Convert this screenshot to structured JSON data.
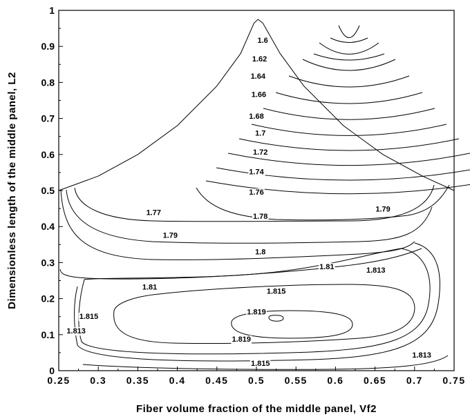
{
  "chart_data": {
    "type": "contour",
    "xlabel": "Fiber volume fraction of the middle panel, Vf2",
    "ylabel": "Dimensionless length of the middle panel, L2",
    "xlim": [
      0.25,
      0.75
    ],
    "ylim": [
      0,
      1
    ],
    "x_ticks": [
      "0.25",
      "0.3",
      "0.35",
      "0.4",
      "0.45",
      "0.5",
      "0.55",
      "0.6",
      "0.65",
      "0.7",
      "0.75"
    ],
    "y_ticks": [
      "0",
      "0.1",
      "0.2",
      "0.3",
      "0.4",
      "0.5",
      "0.6",
      "0.7",
      "0.8",
      "0.9",
      "1"
    ],
    "grid": false,
    "boundary": {
      "left_curve": [
        [
          0.25,
          0.5
        ],
        [
          0.3,
          0.54
        ],
        [
          0.35,
          0.6
        ],
        [
          0.4,
          0.68
        ],
        [
          0.45,
          0.79
        ],
        [
          0.48,
          0.88
        ],
        [
          0.497,
          0.965
        ]
      ],
      "apex": [
        [
          0.497,
          0.965
        ],
        [
          0.502,
          0.975
        ],
        [
          0.508,
          0.965
        ]
      ],
      "right_curve": [
        [
          0.508,
          0.965
        ],
        [
          0.53,
          0.88
        ],
        [
          0.56,
          0.79
        ],
        [
          0.61,
          0.68
        ],
        [
          0.66,
          0.6
        ],
        [
          0.71,
          0.54
        ],
        [
          0.75,
          0.5
        ]
      ]
    },
    "contour_levels": [
      "1.6",
      "1.62",
      "1.64",
      "1.66",
      "1.68",
      "1.7",
      "1.72",
      "1.74",
      "1.76",
      "1.77",
      "1.78",
      "1.79",
      "1.8",
      "1.81",
      "1.813",
      "1.815",
      "1.819"
    ],
    "labels": [
      {
        "text": "1.6",
        "x": 0.508,
        "y": 0.918
      },
      {
        "text": "1.62",
        "x": 0.504,
        "y": 0.866
      },
      {
        "text": "1.64",
        "x": 0.502,
        "y": 0.818
      },
      {
        "text": "1.66",
        "x": 0.503,
        "y": 0.767
      },
      {
        "text": "1.68",
        "x": 0.5,
        "y": 0.707
      },
      {
        "text": "1.7",
        "x": 0.505,
        "y": 0.66
      },
      {
        "text": "1.72",
        "x": 0.505,
        "y": 0.607
      },
      {
        "text": "1.74",
        "x": 0.5,
        "y": 0.553
      },
      {
        "text": "1.76",
        "x": 0.5,
        "y": 0.496
      },
      {
        "text": "1.77",
        "x": 0.37,
        "y": 0.44
      },
      {
        "text": "1.78",
        "x": 0.505,
        "y": 0.429
      },
      {
        "text": "1.79",
        "x": 0.391,
        "y": 0.376
      },
      {
        "text": "1.79",
        "x": 0.66,
        "y": 0.449
      },
      {
        "text": "1.8",
        "x": 0.505,
        "y": 0.33
      },
      {
        "text": "1.81",
        "x": 0.365,
        "y": 0.233
      },
      {
        "text": "1.81",
        "x": 0.589,
        "y": 0.289
      },
      {
        "text": "1.813",
        "x": 0.651,
        "y": 0.28
      },
      {
        "text": "1.813",
        "x": 0.272,
        "y": 0.111
      },
      {
        "text": "1.813",
        "x": 0.709,
        "y": 0.044
      },
      {
        "text": "1.815",
        "x": 0.525,
        "y": 0.221
      },
      {
        "text": "1.815",
        "x": 0.288,
        "y": 0.151
      },
      {
        "text": "1.815",
        "x": 0.505,
        "y": 0.021
      },
      {
        "text": "1.819",
        "x": 0.5,
        "y": 0.164
      },
      {
        "text": "1.819",
        "x": 0.481,
        "y": 0.088
      }
    ]
  }
}
